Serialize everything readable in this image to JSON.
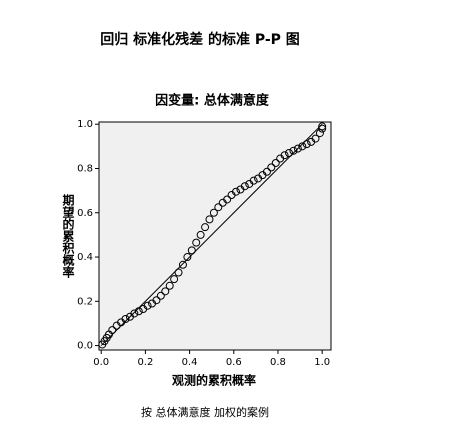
{
  "chart_data": {
    "type": "scatter",
    "title": "回归 标准化残差 的标准 P-P 图",
    "subtitle": "因变量: 总体满意度",
    "x_label": "观测的累积概率",
    "y_label": "期望的累积概率",
    "footnote": "按 总体满意度 加权的案例",
    "xlim": [
      -0.01,
      1.04
    ],
    "ylim": [
      -0.02,
      1.01
    ],
    "xticks": [
      {
        "value": 0,
        "label": "0.0"
      },
      {
        "value": 0.2,
        "label": "0.2"
      },
      {
        "value": 0.4,
        "label": "0.4"
      },
      {
        "value": 0.6,
        "label": "0.6"
      },
      {
        "value": 0.8,
        "label": "0.8"
      },
      {
        "value": 1,
        "label": "1.0"
      }
    ],
    "yticks": [
      {
        "value": 0,
        "label": "0.0"
      },
      {
        "value": 0.2,
        "label": "0.2"
      },
      {
        "value": 0.4,
        "label": "0.4"
      },
      {
        "value": 0.6,
        "label": "0.6"
      },
      {
        "value": 0.8,
        "label": "0.8"
      },
      {
        "value": 1,
        "label": "1.0"
      }
    ],
    "reference_line": {
      "x": [
        0,
        1
      ],
      "y": [
        0,
        1
      ]
    },
    "color": "#000000",
    "background": "#f0f0f0",
    "x": [
      0.005,
      0.015,
      0.025,
      0.035,
      0.05,
      0.07,
      0.09,
      0.11,
      0.13,
      0.15,
      0.17,
      0.19,
      0.21,
      0.23,
      0.25,
      0.27,
      0.29,
      0.31,
      0.33,
      0.35,
      0.37,
      0.39,
      0.41,
      0.43,
      0.45,
      0.47,
      0.49,
      0.51,
      0.53,
      0.55,
      0.57,
      0.59,
      0.61,
      0.63,
      0.65,
      0.67,
      0.69,
      0.71,
      0.73,
      0.75,
      0.77,
      0.79,
      0.81,
      0.83,
      0.85,
      0.87,
      0.89,
      0.91,
      0.93,
      0.95,
      0.97,
      0.99,
      1.0,
      1.0
    ],
    "y": [
      0.005,
      0.02,
      0.035,
      0.05,
      0.07,
      0.09,
      0.105,
      0.12,
      0.13,
      0.145,
      0.155,
      0.165,
      0.18,
      0.19,
      0.205,
      0.225,
      0.245,
      0.27,
      0.3,
      0.33,
      0.365,
      0.4,
      0.43,
      0.465,
      0.5,
      0.535,
      0.57,
      0.6,
      0.625,
      0.645,
      0.66,
      0.68,
      0.695,
      0.705,
      0.72,
      0.73,
      0.745,
      0.755,
      0.77,
      0.785,
      0.805,
      0.825,
      0.845,
      0.86,
      0.87,
      0.88,
      0.89,
      0.9,
      0.91,
      0.92,
      0.935,
      0.96,
      0.98,
      0.99
    ]
  }
}
